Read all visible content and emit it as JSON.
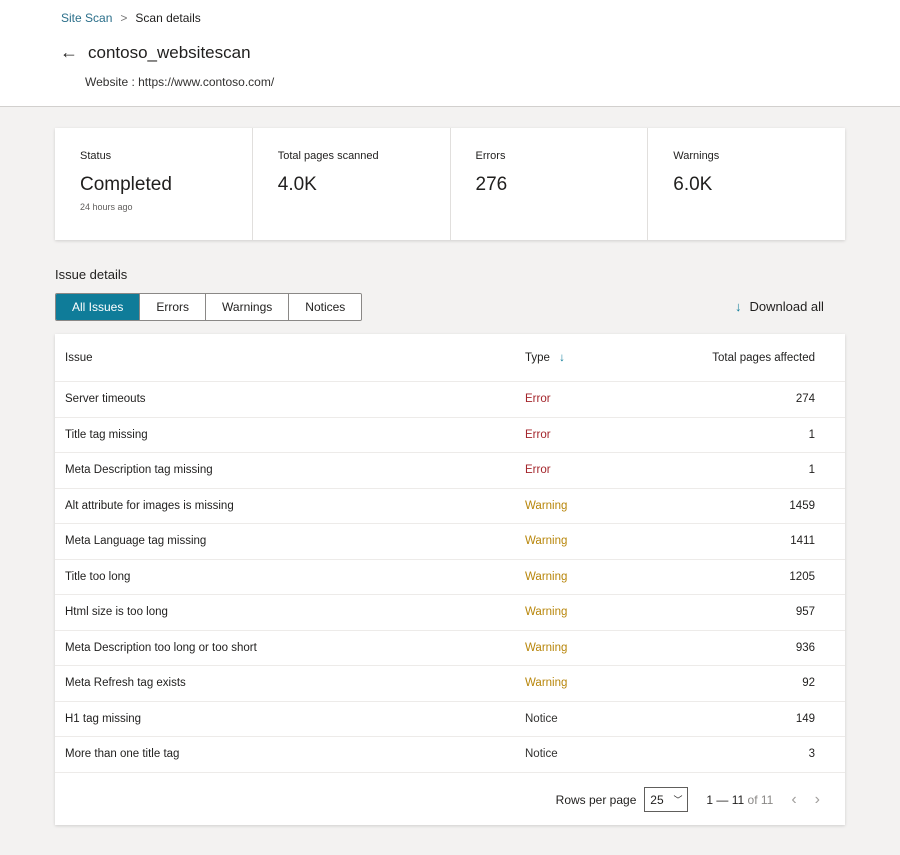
{
  "breadcrumb": {
    "parent": "Site Scan",
    "current": "Scan details"
  },
  "header": {
    "title": "contoso_websitescan",
    "website": "Website : https://www.contoso.com/"
  },
  "summary": [
    {
      "label": "Status",
      "value": "Completed",
      "sub": "24 hours ago"
    },
    {
      "label": "Total pages scanned",
      "value": "4.0K"
    },
    {
      "label": "Errors",
      "value": "276"
    },
    {
      "label": "Warnings",
      "value": "6.0K"
    }
  ],
  "section_title": "Issue details",
  "tabs": [
    "All Issues",
    "Errors",
    "Warnings",
    "Notices"
  ],
  "active_tab": "All Issues",
  "download_label": "Download all",
  "columns": {
    "issue": "Issue",
    "type": "Type",
    "pages": "Total pages affected"
  },
  "rows": [
    {
      "issue": "Server timeouts",
      "type": "Error",
      "pages": "274"
    },
    {
      "issue": "Title tag missing",
      "type": "Error",
      "pages": "1"
    },
    {
      "issue": "Meta Description tag missing",
      "type": "Error",
      "pages": "1"
    },
    {
      "issue": "Alt attribute for images is missing",
      "type": "Warning",
      "pages": "1459"
    },
    {
      "issue": "Meta Language tag missing",
      "type": "Warning",
      "pages": "1411"
    },
    {
      "issue": "Title too long",
      "type": "Warning",
      "pages": "1205"
    },
    {
      "issue": "Html size is too long",
      "type": "Warning",
      "pages": "957"
    },
    {
      "issue": "Meta Description too long or too short",
      "type": "Warning",
      "pages": "936"
    },
    {
      "issue": "Meta Refresh tag exists",
      "type": "Warning",
      "pages": "92"
    },
    {
      "issue": "H1 tag missing",
      "type": "Notice",
      "pages": "149"
    },
    {
      "issue": "More than one title tag",
      "type": "Notice",
      "pages": "3"
    }
  ],
  "pagination": {
    "rows_label": "Rows per page",
    "rows_value": "25",
    "range": "1 — 11",
    "of": "of 11"
  },
  "colors": {
    "accent": "#0f7c99",
    "error": "#a4262c",
    "warning": "#b8860b"
  }
}
